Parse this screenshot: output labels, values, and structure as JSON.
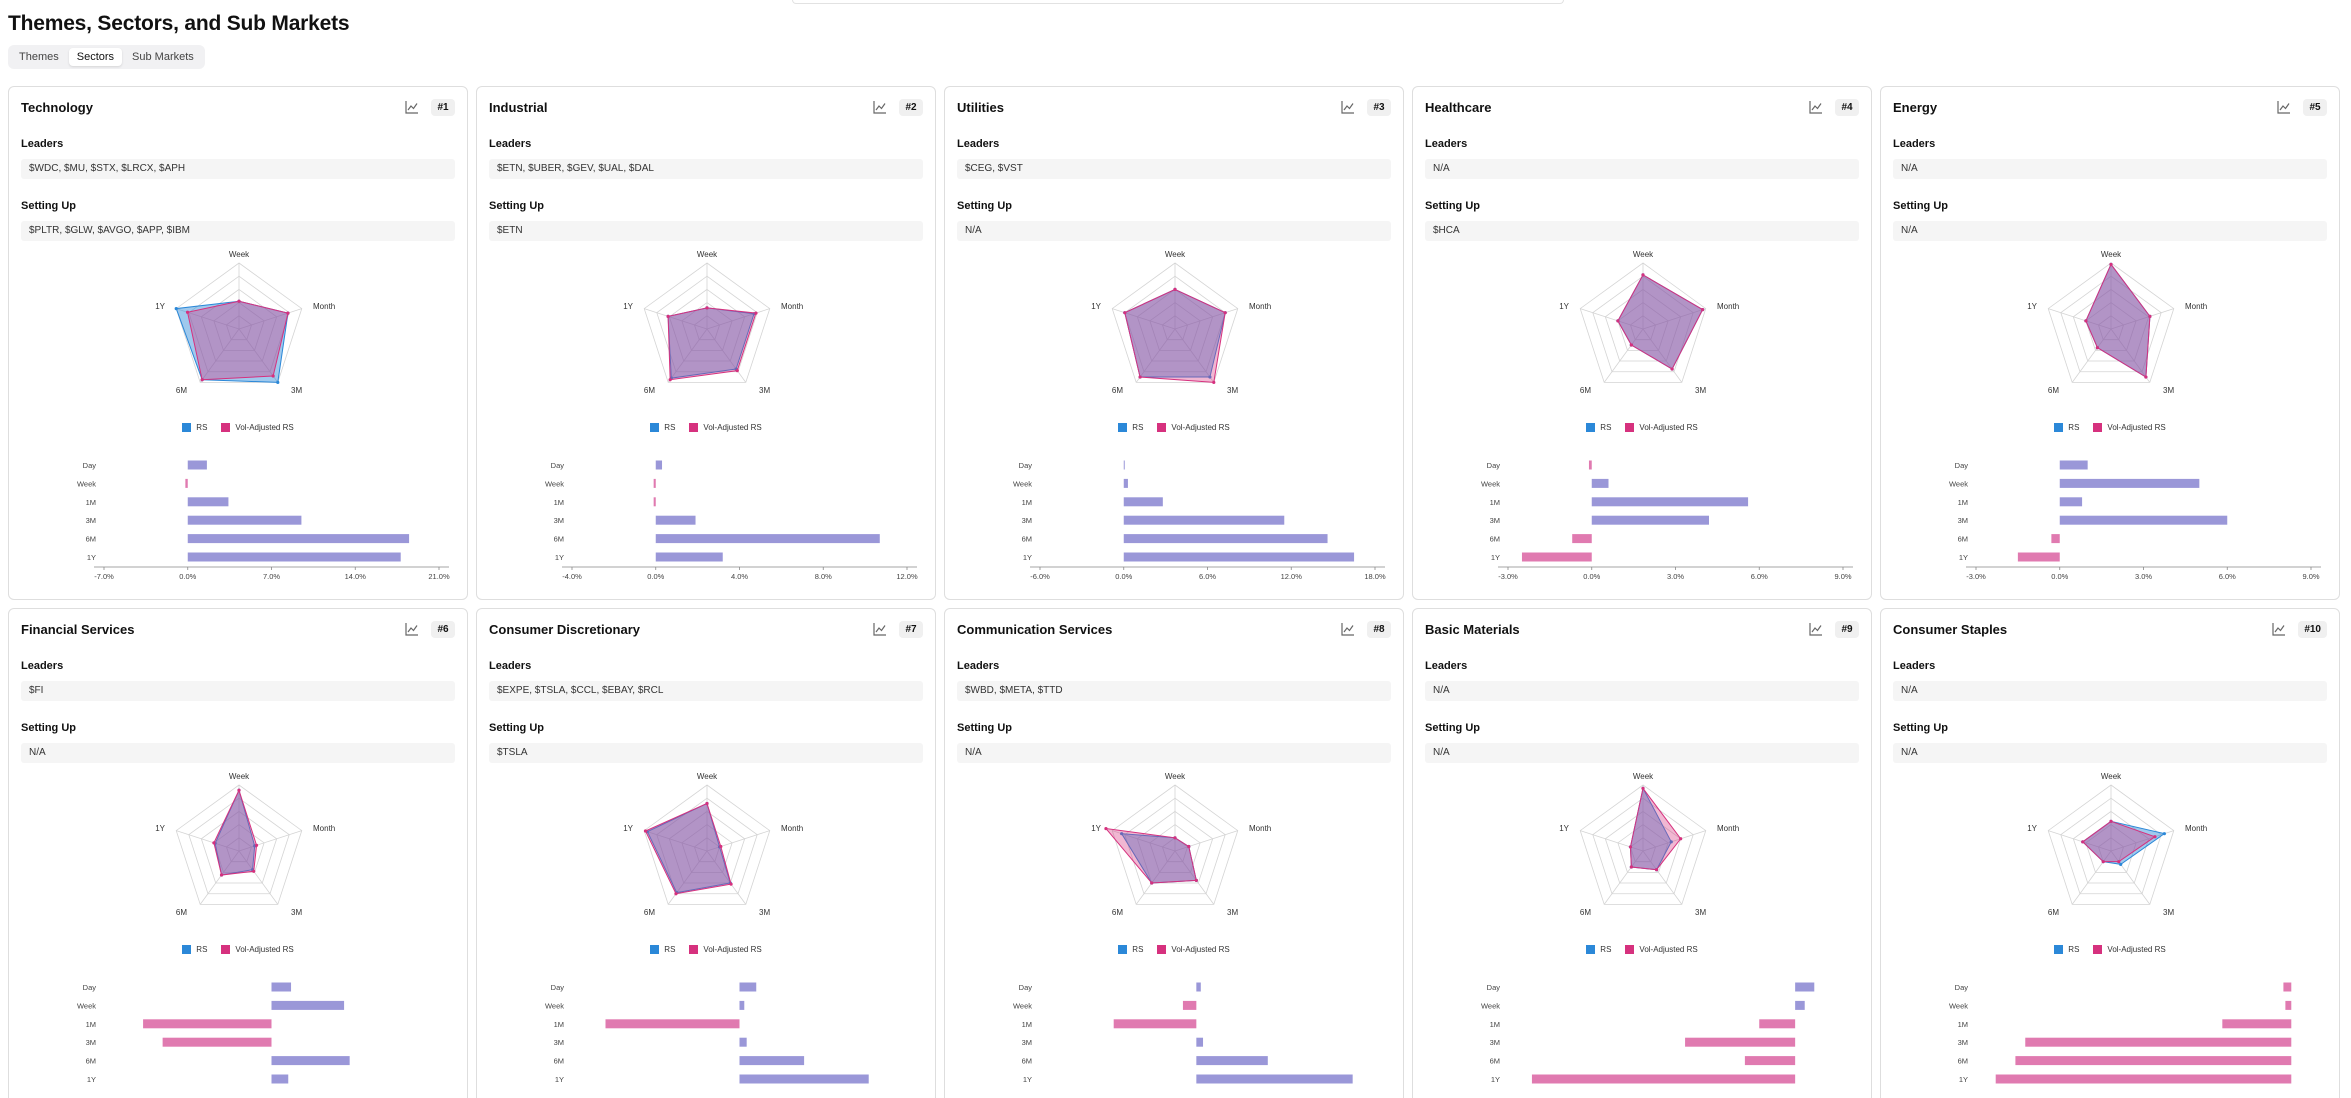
{
  "page": {
    "title": "Themes, Sectors, and Sub Markets"
  },
  "tabs": [
    {
      "label": "Themes",
      "active": false
    },
    {
      "label": "Sectors",
      "active": true
    },
    {
      "label": "Sub Markets",
      "active": false
    }
  ],
  "labels": {
    "leaders": "Leaders",
    "setting_up": "Setting Up",
    "legend_rs": "RS",
    "legend_vol": "Vol-Adjusted RS"
  },
  "colors": {
    "rs": "#2b88d8",
    "vol": "#d6317e",
    "bar_pos": "#9a97d8",
    "bar_neg": "#e07ab0"
  },
  "radar_axes": [
    "Week",
    "Month",
    "3M",
    "6M",
    "1Y"
  ],
  "bar_rows": [
    "Day",
    "Week",
    "1M",
    "3M",
    "6M",
    "1Y"
  ],
  "cards": [
    {
      "title": "Technology",
      "rank": "#1",
      "leaders": "$WDC, $MU, $STX, $LRCX, $APH",
      "setting_up": "$PLTR, $GLW, $AVGO, $APP, $IBM",
      "radar": {
        "rs": [
          0.42,
          0.78,
          1.0,
          0.95,
          1.0
        ],
        "vol": [
          0.42,
          0.78,
          0.88,
          0.95,
          0.82
        ]
      },
      "chart_data": {
        "type": "bar",
        "categories": [
          "Day",
          "Week",
          "1M",
          "3M",
          "6M",
          "1Y"
        ],
        "values": [
          1.6,
          -0.2,
          3.4,
          9.5,
          18.5,
          17.8
        ],
        "x_ticks": [
          "-7.0%",
          "0.0%",
          "7.0%",
          "14.0%",
          "21.0%"
        ],
        "xlim": [
          -7,
          21
        ]
      }
    },
    {
      "title": "Industrial",
      "rank": "#2",
      "leaders": "$ETN, $UBER, $GEV, $UAL, $DAL",
      "setting_up": "$ETN",
      "radar": {
        "rs": [
          0.32,
          0.75,
          0.75,
          0.92,
          0.62
        ],
        "vol": [
          0.32,
          0.78,
          0.78,
          0.95,
          0.62
        ]
      },
      "chart_data": {
        "type": "bar",
        "categories": [
          "Day",
          "Week",
          "1M",
          "3M",
          "6M",
          "1Y"
        ],
        "values": [
          0.3,
          -0.1,
          -0.1,
          1.9,
          10.7,
          3.2
        ],
        "x_ticks": [
          "-4.0%",
          "0.0%",
          "4.0%",
          "8.0%",
          "12.0%"
        ],
        "xlim": [
          -4,
          12
        ]
      }
    },
    {
      "title": "Utilities",
      "rank": "#3",
      "leaders": "$CEG, $VST",
      "setting_up": "N/A",
      "radar": {
        "rs": [
          0.6,
          0.8,
          0.9,
          0.9,
          0.8
        ],
        "vol": [
          0.6,
          0.8,
          1.0,
          0.9,
          0.8
        ]
      },
      "chart_data": {
        "type": "bar",
        "categories": [
          "Day",
          "Week",
          "1M",
          "3M",
          "6M",
          "1Y"
        ],
        "values": [
          0.05,
          0.3,
          2.8,
          11.5,
          14.6,
          16.5
        ],
        "x_ticks": [
          "-6.0%",
          "0.0%",
          "6.0%",
          "12.0%",
          "18.0%"
        ],
        "xlim": [
          -6,
          18
        ]
      }
    },
    {
      "title": "Healthcare",
      "rank": "#4",
      "leaders": "N/A",
      "setting_up": "$HCA",
      "radar": {
        "rs": [
          0.82,
          0.95,
          0.75,
          0.3,
          0.4
        ],
        "vol": [
          0.82,
          0.95,
          0.75,
          0.3,
          0.4
        ]
      },
      "chart_data": {
        "type": "bar",
        "categories": [
          "Day",
          "Week",
          "1M",
          "3M",
          "6M",
          "1Y"
        ],
        "values": [
          -0.1,
          0.6,
          5.6,
          4.2,
          -0.7,
          -2.5
        ],
        "x_ticks": [
          "-3.0%",
          "0.0%",
          "3.0%",
          "6.0%",
          "9.0%"
        ],
        "xlim": [
          -3,
          9
        ]
      }
    },
    {
      "title": "Energy",
      "rank": "#5",
      "leaders": "N/A",
      "setting_up": "N/A",
      "radar": {
        "rs": [
          0.98,
          0.62,
          0.9,
          0.35,
          0.4
        ],
        "vol": [
          0.98,
          0.62,
          0.9,
          0.35,
          0.4
        ]
      },
      "chart_data": {
        "type": "bar",
        "categories": [
          "Day",
          "Week",
          "1M",
          "3M",
          "6M",
          "1Y"
        ],
        "values": [
          1.0,
          5.0,
          0.8,
          6.0,
          -0.3,
          -1.5
        ],
        "x_ticks": [
          "-3.0%",
          "0.0%",
          "3.0%",
          "6.0%",
          "9.0%"
        ],
        "xlim": [
          -3,
          9
        ]
      }
    },
    {
      "title": "Financial Services",
      "rank": "#6",
      "leaders": "$FI",
      "setting_up": "N/A",
      "radar": {
        "rs": [
          0.92,
          0.25,
          0.35,
          0.45,
          0.38
        ],
        "vol": [
          0.92,
          0.28,
          0.38,
          0.45,
          0.4
        ]
      },
      "chart_data": {
        "type": "bar",
        "categories": [
          "Day",
          "Week",
          "1M",
          "3M",
          "6M",
          "1Y"
        ],
        "values": [
          0.7,
          2.6,
          -4.6,
          -3.9,
          2.8,
          0.6
        ],
        "x_ticks": [],
        "xlim": [
          -6,
          6
        ]
      }
    },
    {
      "title": "Consumer Discretionary",
      "rank": "#7",
      "leaders": "$EXPE, $TSLA, $CCL, $EBAY, $RCL",
      "setting_up": "$TSLA",
      "radar": {
        "rs": [
          0.72,
          0.2,
          0.6,
          0.78,
          0.95
        ],
        "vol": [
          0.72,
          0.22,
          0.62,
          0.8,
          0.98
        ]
      },
      "chart_data": {
        "type": "bar",
        "categories": [
          "Day",
          "Week",
          "1M",
          "3M",
          "6M",
          "1Y"
        ],
        "values": [
          0.7,
          0.2,
          -5.6,
          0.3,
          2.7,
          5.4
        ],
        "x_ticks": [],
        "xlim": [
          -7,
          7
        ]
      }
    },
    {
      "title": "Communication Services",
      "rank": "#8",
      "leaders": "$WBD, $META, $TTD",
      "setting_up": "N/A",
      "radar": {
        "rs": [
          0.2,
          0.22,
          0.55,
          0.6,
          0.85
        ],
        "vol": [
          0.2,
          0.22,
          0.55,
          0.6,
          1.1
        ]
      },
      "chart_data": {
        "type": "bar",
        "categories": [
          "Day",
          "Week",
          "1M",
          "3M",
          "6M",
          "1Y"
        ],
        "values": [
          0.2,
          -0.6,
          -3.7,
          0.3,
          3.2,
          7.0
        ],
        "x_ticks": [],
        "xlim": [
          -7,
          8
        ]
      }
    },
    {
      "title": "Basic Materials",
      "rank": "#9",
      "leaders": "N/A",
      "setting_up": "N/A",
      "radar": {
        "rs": [
          0.95,
          0.45,
          0.35,
          0.3,
          0.2
        ],
        "vol": [
          0.95,
          0.6,
          0.35,
          0.3,
          0.2
        ]
      },
      "chart_data": {
        "type": "bar",
        "categories": [
          "Day",
          "Week",
          "1M",
          "3M",
          "6M",
          "1Y"
        ],
        "values": [
          0.8,
          0.4,
          -1.5,
          -4.6,
          -2.1,
          -11.0
        ],
        "x_ticks": [],
        "xlim": [
          -12,
          2
        ]
      }
    },
    {
      "title": "Consumer Staples",
      "rank": "#10",
      "leaders": "N/A",
      "setting_up": "N/A",
      "radar": {
        "rs": [
          0.45,
          0.85,
          0.25,
          0.2,
          0.45
        ],
        "vol": [
          0.45,
          0.7,
          0.2,
          0.2,
          0.45
        ]
      },
      "chart_data": {
        "type": "bar",
        "categories": [
          "Day",
          "Week",
          "1M",
          "3M",
          "6M",
          "1Y"
        ],
        "values": [
          -0.4,
          -0.3,
          -3.5,
          -13.5,
          -14.0,
          -15.0
        ],
        "x_ticks": [],
        "xlim": [
          -16,
          1
        ]
      }
    }
  ]
}
